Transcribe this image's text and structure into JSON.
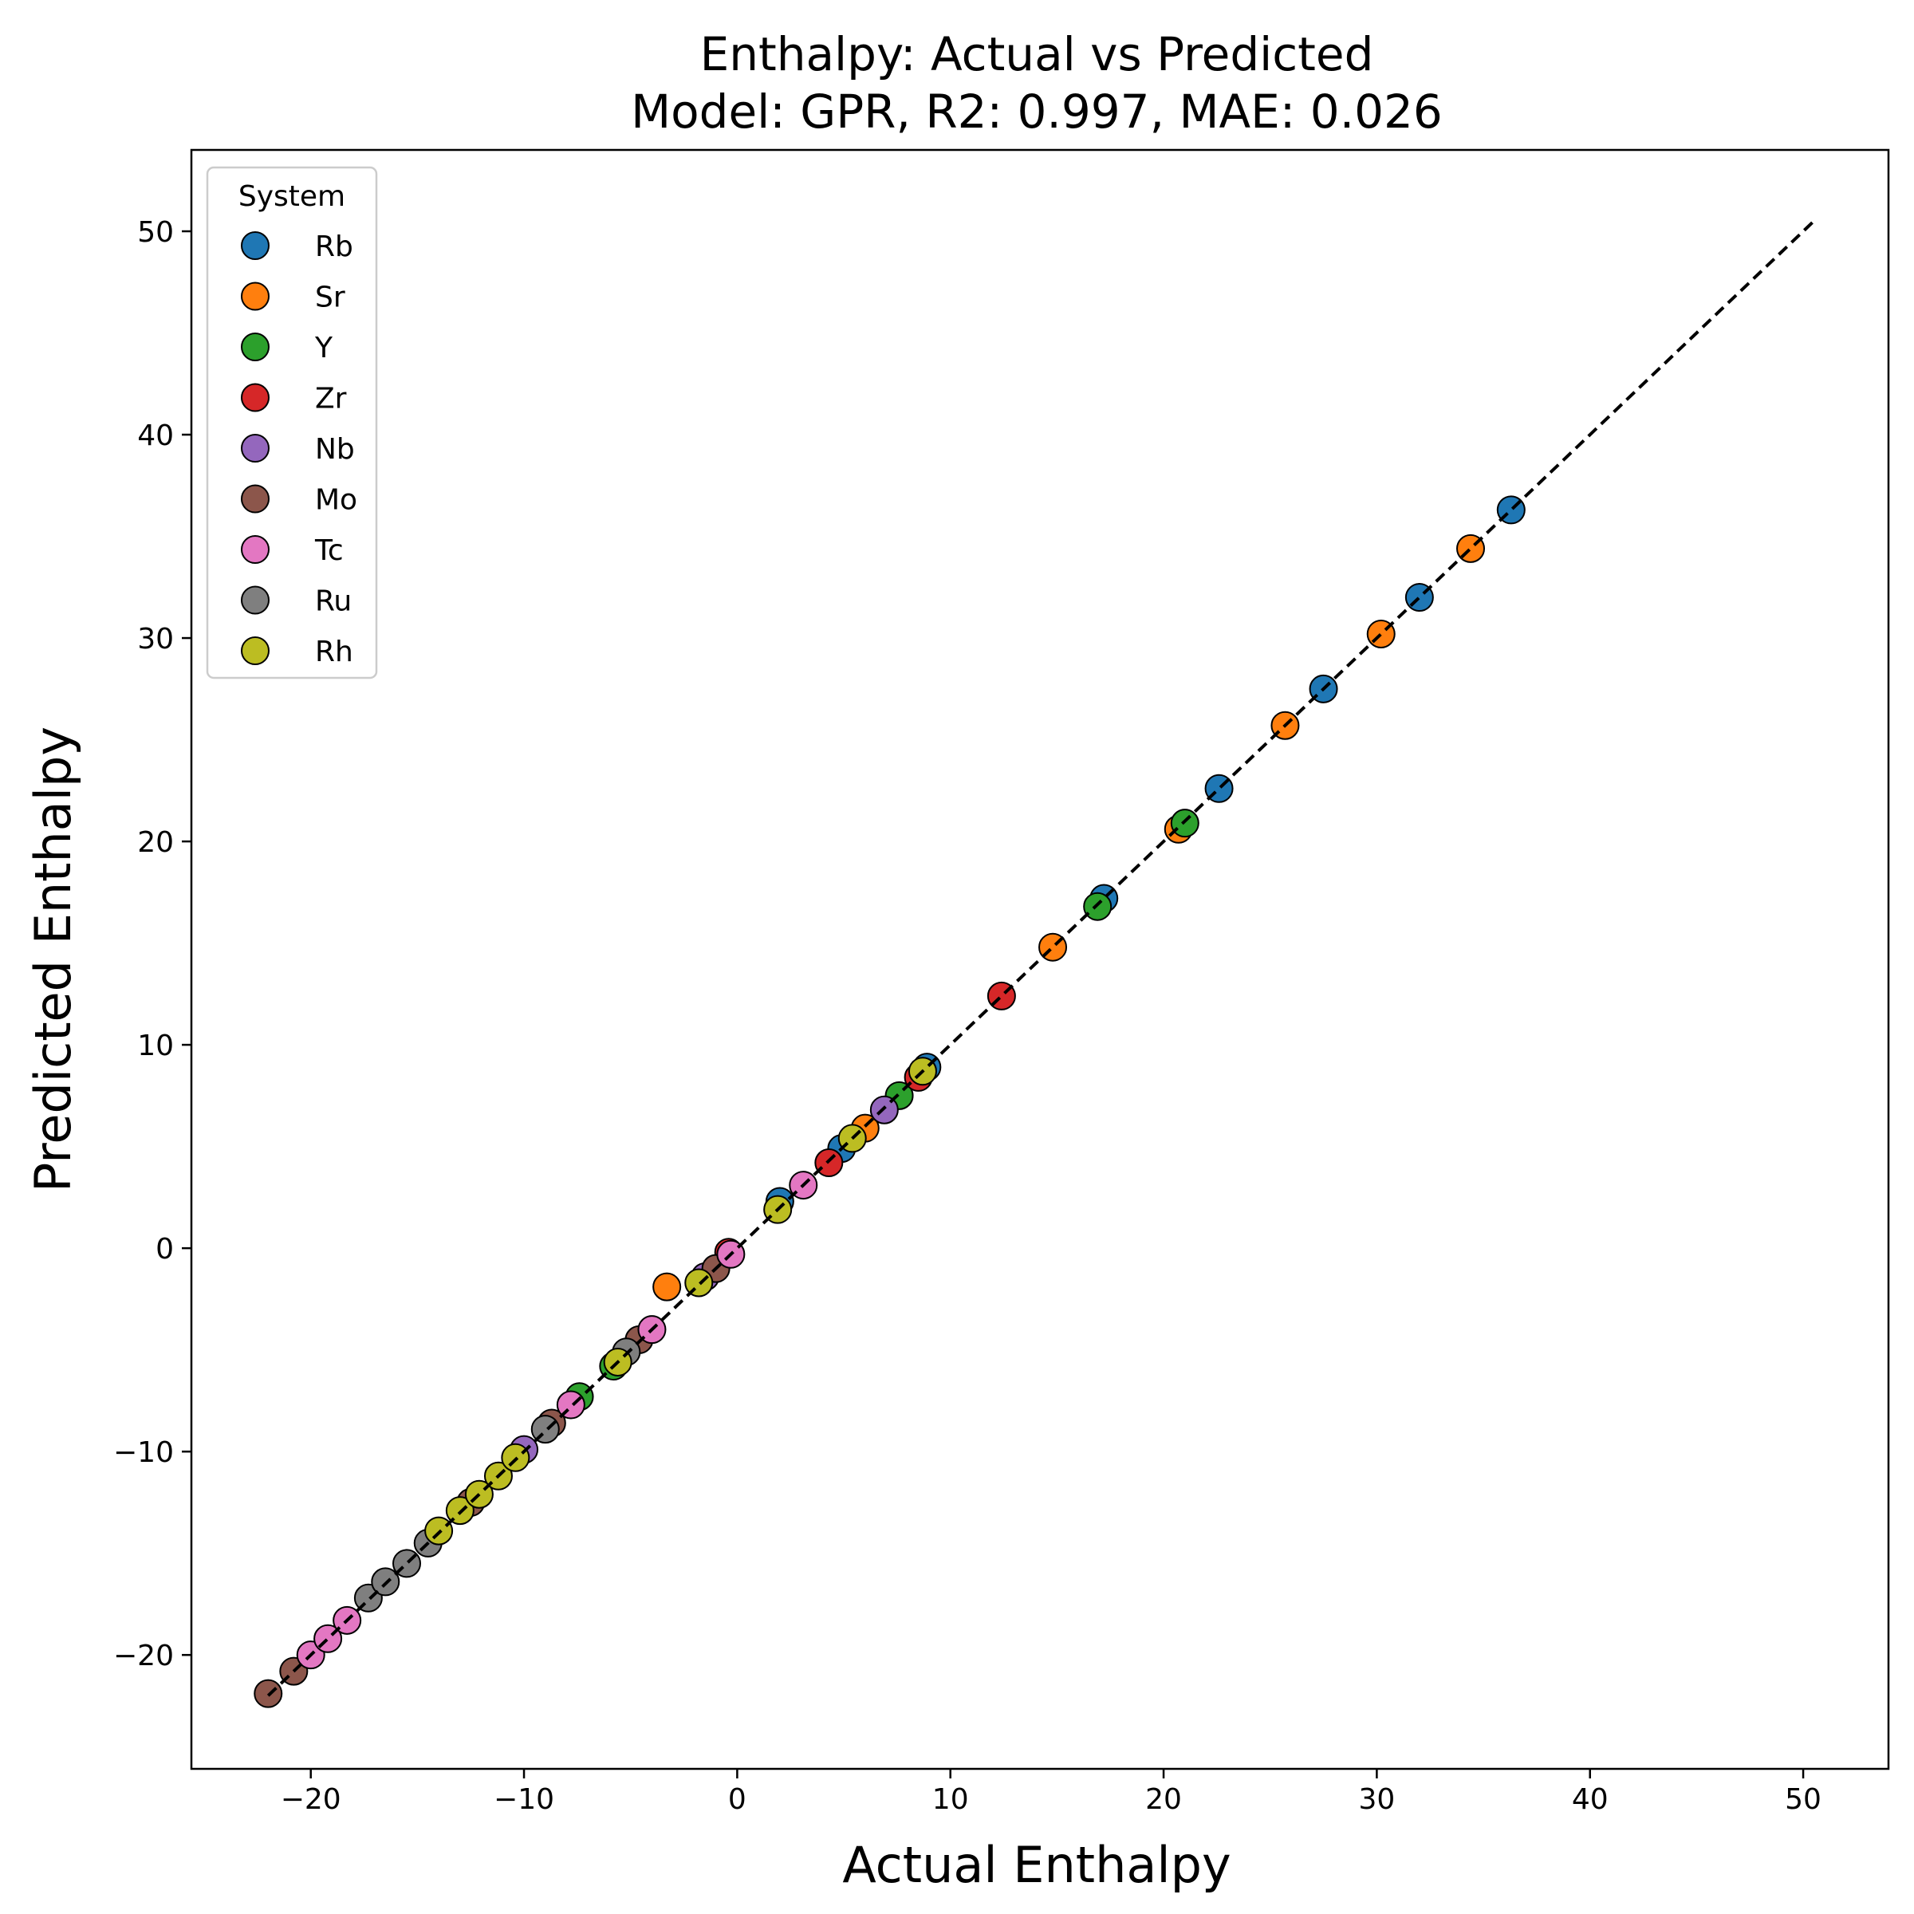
{
  "chart_data": {
    "type": "scatter",
    "title": "Enthalpy: Actual vs Predicted",
    "subtitle": "Model: GPR, R2: 0.997, MAE: 0.026",
    "xlabel": "Actual Enthalpy",
    "ylabel": "Predicted Enthalpy",
    "xlim": [
      -25.6,
      54.0
    ],
    "ylim": [
      -25.6,
      54.0
    ],
    "xticks": [
      -20,
      -10,
      0,
      10,
      20,
      30,
      40,
      50
    ],
    "yticks": [
      -20,
      -10,
      0,
      10,
      20,
      30,
      40,
      50
    ],
    "xtick_labels": [
      "−20",
      "−10",
      "0",
      "10",
      "20",
      "30",
      "40",
      "50"
    ],
    "ytick_labels": [
      "−20",
      "−10",
      "0",
      "10",
      "20",
      "30",
      "40",
      "50"
    ],
    "grid": false,
    "legend": {
      "title": "System",
      "position": "top-left"
    },
    "reference_line": {
      "style": "dashed",
      "color": "#000000",
      "x": [
        -22.0,
        50.5
      ],
      "y": [
        -22.0,
        50.5
      ]
    },
    "series": [
      {
        "name": "Rb",
        "color": "#1f77b4",
        "points": [
          [
            36.3,
            36.3
          ],
          [
            32.0,
            32.0
          ],
          [
            27.5,
            27.5
          ],
          [
            22.6,
            22.6
          ],
          [
            17.2,
            17.2
          ],
          [
            8.9,
            8.9
          ],
          [
            4.9,
            4.9
          ],
          [
            2.0,
            2.3
          ]
        ]
      },
      {
        "name": "Sr",
        "color": "#ff7f0e",
        "points": [
          [
            34.4,
            34.4
          ],
          [
            30.2,
            30.2
          ],
          [
            25.7,
            25.7
          ],
          [
            20.7,
            20.6
          ],
          [
            14.8,
            14.8
          ],
          [
            6.0,
            5.9
          ],
          [
            -3.3,
            -1.9
          ]
        ]
      },
      {
        "name": "Y",
        "color": "#2ca02c",
        "points": [
          [
            21.0,
            20.9
          ],
          [
            16.9,
            16.8
          ],
          [
            7.6,
            7.5
          ],
          [
            -7.4,
            -7.3
          ],
          [
            -5.8,
            -5.8
          ]
        ]
      },
      {
        "name": "Zr",
        "color": "#d62728",
        "points": [
          [
            12.4,
            12.4
          ],
          [
            8.5,
            8.4
          ],
          [
            4.3,
            4.2
          ],
          [
            -0.4,
            -0.2
          ]
        ]
      },
      {
        "name": "Nb",
        "color": "#9467bd",
        "points": [
          [
            6.9,
            6.8
          ],
          [
            -10.0,
            -9.9
          ],
          [
            -1.5,
            -1.4
          ]
        ]
      },
      {
        "name": "Mo",
        "color": "#8c564b",
        "points": [
          [
            -22.0,
            -21.9
          ],
          [
            -20.8,
            -20.8
          ],
          [
            -8.7,
            -8.6
          ],
          [
            -4.6,
            -4.5
          ],
          [
            -1.0,
            -1.0
          ],
          [
            -12.5,
            -12.5
          ]
        ]
      },
      {
        "name": "Tc",
        "color": "#e377c2",
        "points": [
          [
            -20.0,
            -20.0
          ],
          [
            -19.2,
            -19.2
          ],
          [
            -18.3,
            -18.3
          ],
          [
            -7.8,
            -7.7
          ],
          [
            -4.0,
            -4.0
          ],
          [
            -0.3,
            -0.3
          ],
          [
            3.1,
            3.1
          ]
        ]
      },
      {
        "name": "Ru",
        "color": "#7f7f7f",
        "points": [
          [
            -17.3,
            -17.2
          ],
          [
            -16.5,
            -16.4
          ],
          [
            -15.5,
            -15.5
          ],
          [
            -14.5,
            -14.5
          ],
          [
            -9.0,
            -8.9
          ],
          [
            -5.2,
            -5.1
          ]
        ]
      },
      {
        "name": "Rh",
        "color": "#bcbd22",
        "points": [
          [
            -14.0,
            -13.9
          ],
          [
            -13.0,
            -12.9
          ],
          [
            -12.1,
            -12.1
          ],
          [
            -11.2,
            -11.2
          ],
          [
            -10.4,
            -10.3
          ],
          [
            -5.6,
            -5.6
          ],
          [
            -1.8,
            -1.7
          ],
          [
            1.9,
            1.9
          ],
          [
            5.4,
            5.4
          ],
          [
            8.7,
            8.7
          ]
        ]
      }
    ]
  }
}
